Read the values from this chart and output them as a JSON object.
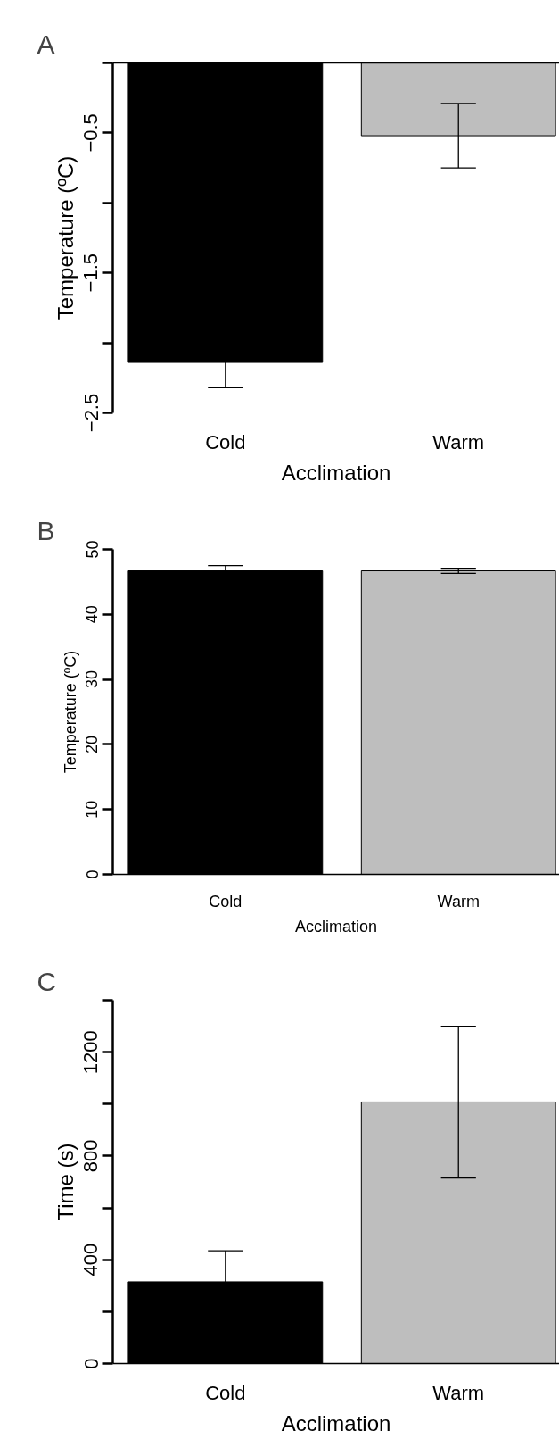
{
  "chart_data": [
    {
      "type": "bar",
      "title": "A",
      "xlabel": "Acclimation",
      "ylabel": "Temperature (ºC)",
      "categories": [
        "Cold",
        "Warm"
      ],
      "values": [
        -2.14,
        -0.52
      ],
      "colors": [
        "#000000",
        "#bebebe"
      ],
      "errors": [
        0.18,
        0.23
      ],
      "ylim": [
        -2.5,
        0
      ],
      "yticks": [
        {
          "value": -2.5,
          "label": "−2.5"
        },
        {
          "value": -2,
          "label": null
        },
        {
          "value": -1.5,
          "label": "−1.5"
        },
        {
          "value": -1,
          "label": null
        },
        {
          "value": -0.5,
          "label": "−0.5"
        },
        {
          "value": 0,
          "label": null
        }
      ],
      "grid": false
    },
    {
      "type": "bar",
      "title": "B",
      "xlabel": "Acclimation",
      "ylabel": "Temperature (ºC)",
      "categories": [
        "Cold",
        "Warm"
      ],
      "values": [
        46.7,
        46.7
      ],
      "colors": [
        "#000000",
        "#bebebe"
      ],
      "errors": [
        0.8,
        0.4
      ],
      "ylim": [
        0,
        50
      ],
      "yticks": [
        0,
        10,
        20,
        30,
        40,
        50
      ],
      "grid": false
    },
    {
      "type": "bar",
      "title": "C",
      "xlabel": "Acclimation",
      "ylabel": "Time (s)",
      "categories": [
        "Cold",
        "Warm"
      ],
      "values": [
        315,
        1008
      ],
      "colors": [
        "#000000",
        "#bebebe"
      ],
      "errors": [
        120,
        [
          715,
          1300
        ]
      ],
      "ylim": [
        0,
        1400
      ],
      "yticks": [
        0,
        {
          "value": 200,
          "label": null
        },
        400,
        {
          "value": 600,
          "label": null
        },
        800,
        {
          "value": 1000,
          "label": null
        },
        1200,
        {
          "value": 1400,
          "label": null
        }
      ],
      "grid": false
    }
  ]
}
